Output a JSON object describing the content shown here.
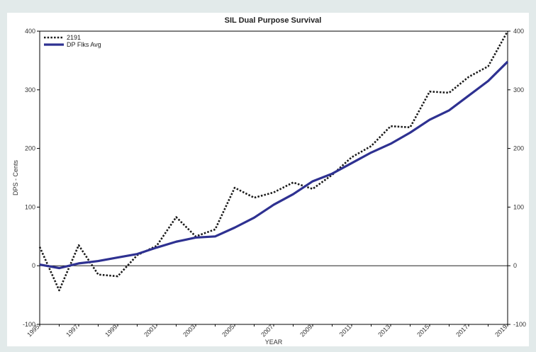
{
  "chart_data": {
    "type": "line",
    "title": "SIL Dual Purpose Survival",
    "xlabel": "YEAR",
    "ylabel": "DPS - Cents",
    "x": [
      1995,
      1996,
      1997,
      1998,
      1999,
      2000,
      2001,
      2002,
      2003,
      2004,
      2005,
      2006,
      2007,
      2008,
      2009,
      2010,
      2011,
      2012,
      2013,
      2014,
      2015,
      2016,
      2017,
      2018,
      2019
    ],
    "x_tick_labels": [
      "1995",
      "1997",
      "1999",
      "2001",
      "2003",
      "2005",
      "2007",
      "2009",
      "2011",
      "2013",
      "2015",
      "2017",
      "2019"
    ],
    "xlim": [
      1995,
      2019
    ],
    "ylim": [
      -100,
      400
    ],
    "y_ticks": [
      -100,
      0,
      100,
      200,
      300,
      400
    ],
    "legend_position": "top-left",
    "grid": false,
    "reference_line_y": 0,
    "series": [
      {
        "name": "2191",
        "style": "dotted",
        "color": "#1a1a1a",
        "values": [
          32,
          -42,
          35,
          -15,
          -18,
          18,
          34,
          83,
          50,
          62,
          133,
          116,
          125,
          142,
          131,
          155,
          185,
          204,
          238,
          236,
          297,
          295,
          322,
          340,
          400
        ]
      },
      {
        "name": "DP Flks Avg",
        "style": "solid",
        "color": "#2e3191",
        "values": [
          2,
          -4,
          4,
          8,
          14,
          20,
          31,
          41,
          48,
          50,
          65,
          82,
          104,
          122,
          144,
          157,
          175,
          193,
          208,
          227,
          249,
          265,
          290,
          315,
          348
        ]
      }
    ]
  }
}
